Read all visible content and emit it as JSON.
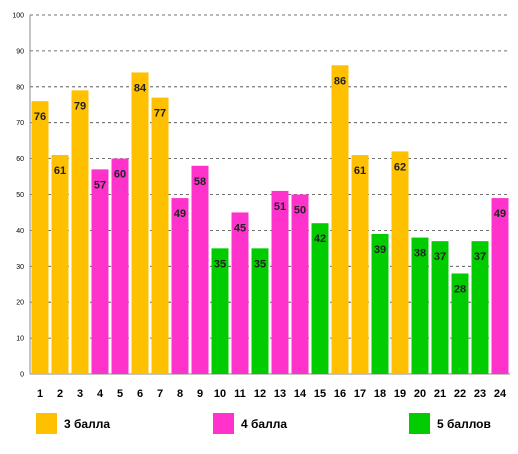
{
  "chart_data": {
    "type": "bar",
    "categories": [
      "1",
      "2",
      "3",
      "4",
      "5",
      "6",
      "7",
      "8",
      "9",
      "10",
      "11",
      "12",
      "13",
      "14",
      "15",
      "16",
      "17",
      "18",
      "19",
      "20",
      "21",
      "22",
      "23",
      "24"
    ],
    "values": [
      76,
      61,
      79,
      57,
      60,
      84,
      77,
      49,
      58,
      35,
      45,
      35,
      51,
      50,
      42,
      86,
      61,
      39,
      62,
      38,
      37,
      28,
      37,
      49
    ],
    "groups": [
      "3",
      "3",
      "3",
      "4",
      "4",
      "3",
      "3",
      "4",
      "4",
      "5",
      "4",
      "5",
      "4",
      "4",
      "5",
      "3",
      "3",
      "5",
      "3",
      "5",
      "5",
      "5",
      "5",
      "4"
    ],
    "ylim": [
      0,
      100
    ],
    "yticks": [
      0,
      10,
      20,
      30,
      40,
      50,
      60,
      70,
      80,
      90,
      100
    ],
    "grid": true,
    "legend_position": "bottom",
    "legend": [
      {
        "key": "3",
        "label": "3 балла",
        "color": "#FFC000"
      },
      {
        "key": "4",
        "label": "4 балла",
        "color": "#FF33CC"
      },
      {
        "key": "5",
        "label": "5 баллов",
        "color": "#00CC00"
      }
    ]
  }
}
